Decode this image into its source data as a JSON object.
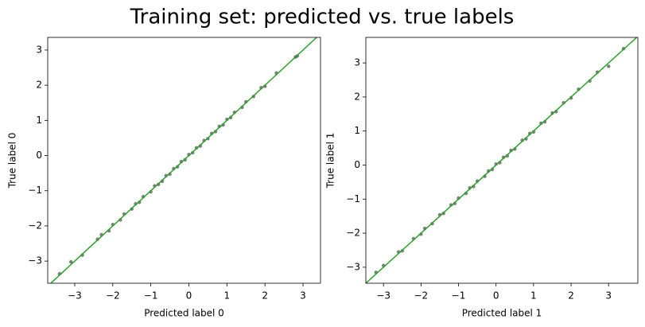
{
  "title": "Training set: predicted vs. true labels",
  "chart_data": [
    {
      "type": "scatter",
      "x_label": "Predicted label 0",
      "y_label": "True label 0",
      "xlim": [
        -3.71,
        3.46
      ],
      "ylim": [
        -3.63,
        3.36
      ],
      "line_color": "#2ca02c",
      "xticks": [
        {
          "value": -3,
          "label": "−3"
        },
        {
          "value": -2,
          "label": "−2"
        },
        {
          "value": -1,
          "label": "−1"
        },
        0,
        1,
        2,
        3
      ],
      "yticks": [
        {
          "value": -3,
          "label": "−3"
        },
        {
          "value": -2,
          "label": "−2"
        },
        {
          "value": -1,
          "label": "−1"
        },
        0,
        1,
        2,
        3
      ],
      "series": [
        {
          "color": "#000000",
          "x": [
            -3.4,
            -3.1,
            -2.8,
            -2.4,
            -2.3,
            -2.1,
            -2.0,
            -1.8,
            -1.7,
            -1.5,
            -1.4,
            -1.3,
            -1.2,
            -1.0,
            -0.9,
            -0.8,
            -0.7,
            -0.6,
            -0.5,
            -0.4,
            -0.3,
            -0.2,
            -0.1,
            0.0,
            0.1,
            0.2,
            0.3,
            0.4,
            0.5,
            0.6,
            0.7,
            0.8,
            0.9,
            1.0,
            1.1,
            1.2,
            1.4,
            1.5,
            1.7,
            1.9,
            2.0,
            2.3,
            2.8,
            2.85
          ],
          "values": [
            -3.36,
            -3.02,
            -2.83,
            -2.38,
            -2.25,
            -2.14,
            -1.96,
            -1.83,
            -1.66,
            -1.52,
            -1.37,
            -1.33,
            -1.17,
            -1.03,
            -0.86,
            -0.82,
            -0.73,
            -0.57,
            -0.53,
            -0.37,
            -0.32,
            -0.17,
            -0.12,
            0.03,
            0.08,
            0.22,
            0.27,
            0.43,
            0.48,
            0.63,
            0.68,
            0.83,
            0.87,
            1.03,
            1.08,
            1.23,
            1.37,
            1.53,
            1.68,
            1.93,
            1.97,
            2.35,
            2.8,
            2.83
          ]
        }
      ]
    },
    {
      "type": "scatter",
      "x_label": "Predicted label 1",
      "y_label": "True label 1",
      "xlim": [
        -3.47,
        3.78
      ],
      "ylim": [
        -3.47,
        3.75
      ],
      "line_color": "#2ca02c",
      "xticks": [
        {
          "value": -3,
          "label": "−3"
        },
        {
          "value": -2,
          "label": "−2"
        },
        {
          "value": -1,
          "label": "−1"
        },
        0,
        1,
        2,
        3
      ],
      "yticks": [
        {
          "value": -3,
          "label": "−3"
        },
        {
          "value": -2,
          "label": "−2"
        },
        {
          "value": -1,
          "label": "−1"
        },
        0,
        1,
        2,
        3
      ],
      "series": [
        {
          "color": "#000000",
          "x": [
            -3.2,
            -3.0,
            -2.6,
            -2.5,
            -2.2,
            -2.0,
            -1.9,
            -1.7,
            -1.5,
            -1.4,
            -1.2,
            -1.1,
            -1.0,
            -0.8,
            -0.7,
            -0.6,
            -0.5,
            -0.3,
            -0.2,
            -0.1,
            0.0,
            0.1,
            0.2,
            0.3,
            0.4,
            0.5,
            0.7,
            0.8,
            0.9,
            1.0,
            1.2,
            1.3,
            1.5,
            1.6,
            1.8,
            2.0,
            2.2,
            2.5,
            2.7,
            3.0,
            3.4
          ],
          "values": [
            -3.15,
            -2.95,
            -2.55,
            -2.52,
            -2.16,
            -2.03,
            -1.86,
            -1.72,
            -1.46,
            -1.42,
            -1.17,
            -1.13,
            -0.97,
            -0.83,
            -0.67,
            -0.63,
            -0.47,
            -0.33,
            -0.17,
            -0.13,
            0.03,
            0.07,
            0.23,
            0.27,
            0.43,
            0.47,
            0.73,
            0.77,
            0.93,
            0.97,
            1.23,
            1.27,
            1.53,
            1.57,
            1.83,
            1.97,
            2.23,
            2.47,
            2.73,
            2.9,
            3.42
          ]
        }
      ]
    }
  ]
}
